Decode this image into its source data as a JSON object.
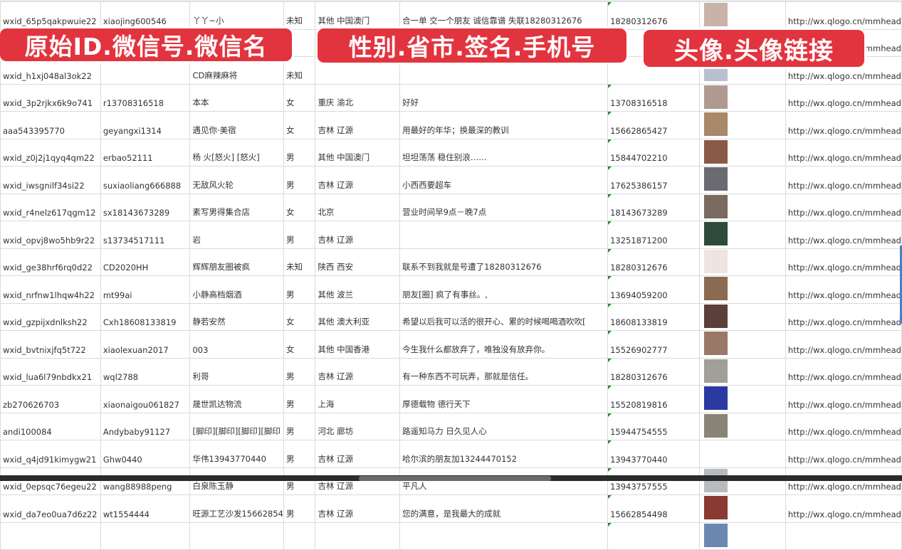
{
  "overlay_labels": [
    "原始ID.微信号.微信名",
    "性别.省市.签名.手机号",
    "头像.头像链接"
  ],
  "rows": [
    {
      "id": "wxid_65p5qakpwuie22",
      "wechat": "xiaojing600546",
      "name": "丫丫~小",
      "gender": "未知",
      "region": "其他 中国澳门",
      "signature": "合一单 交一个朋友 诚信靠谱 失联18280312676",
      "phone": "18280312676",
      "avatar": "#c9b3a8",
      "url": "http://wx.qlogo.cn/mmhead"
    },
    {
      "id": "",
      "wechat": "",
      "name": "",
      "gender": "",
      "region": "",
      "signature": "",
      "phone": "",
      "avatar": "#8aa0c0",
      "url": "http://wx.qlogo.cn/mmhead"
    },
    {
      "id": "wxid_h1xj048al3ok22",
      "wechat": "",
      "name": "CD麻辣麻将",
      "gender": "未知",
      "region": "",
      "signature": "",
      "phone": "",
      "avatar": "#b8c0d0",
      "url": "http://wx.qlogo.cn/mmhead"
    },
    {
      "id": "wxid_3p2rjkx6k9o741",
      "wechat": "r13708316518",
      "name": "本本",
      "gender": "女",
      "region": "重庆 渝北",
      "signature": "好好",
      "phone": "13708316518",
      "avatar": "#b09a90",
      "url": "http://wx.qlogo.cn/mmhead"
    },
    {
      "id": "aaa543395770",
      "wechat": "geyangxi1314",
      "name": "遇见你·美宿",
      "gender": "女",
      "region": "吉林 辽源",
      "signature": "用最好的年华；换最深的教训",
      "phone": "15662865427",
      "avatar": "#a88868",
      "url": "http://wx.qlogo.cn/mmhead"
    },
    {
      "id": "wxid_z0j2j1qyq4qm22",
      "wechat": "erbao52111",
      "name": "杨 火[怒火] [怒火]",
      "gender": "男",
      "region": "其他 中国澳门",
      "signature": "坦坦荡荡 稳住别浪……",
      "phone": "15844702210",
      "avatar": "#8a5a48",
      "url": "http://wx.qlogo.cn/mmhead"
    },
    {
      "id": "wxid_iwsgnilf34si22",
      "wechat": "suxiaoliang666888",
      "name": "无敌风火轮",
      "gender": "男",
      "region": "吉林 辽源",
      "signature": "小西西要超车",
      "phone": "17625386157",
      "avatar": "#6a6a70",
      "url": "http://wx.qlogo.cn/mmhead"
    },
    {
      "id": "wxid_r4nelz617qgm12",
      "wechat": "sx18143673289",
      "name": "素写男得集合店",
      "gender": "女",
      "region": "北京",
      "signature": "营业时间早9点－晚7点",
      "phone": "18143673289",
      "avatar": "#7a6a60",
      "url": "http://wx.qlogo.cn/mmhead"
    },
    {
      "id": "wxid_opvj8wo5hb9r22",
      "wechat": "s13734517111",
      "name": "岩",
      "gender": "男",
      "region": "吉林 辽源",
      "signature": "",
      "phone": "13251871200",
      "avatar": "#2e4a38",
      "url": "http://wx.qlogo.cn/mmhead"
    },
    {
      "id": "wxid_ge38hrf6rq0d22",
      "wechat": "CD2020HH",
      "name": "辉辉朋友圈被疯",
      "gender": "未知",
      "region": "陕西 西安",
      "signature": "联系不到我就是号遭了18280312676",
      "phone": "18280312676",
      "avatar": "#f0e4e0",
      "url": "http://wx.qlogo.cn/mmhead"
    },
    {
      "id": "wxid_nrfnw1lhqw4h22",
      "wechat": "mt99ai",
      "name": "小静高档烟酒",
      "gender": "男",
      "region": "其他 波兰",
      "signature": "朋友[圈] 疯了有事丝。,",
      "phone": "13694059200",
      "avatar": "#8a6a50",
      "url": "http://wx.qlogo.cn/mmhead"
    },
    {
      "id": "wxid_gzpijxdnlksh22",
      "wechat": "Cxh18608133819",
      "name": "静若安然",
      "gender": "女",
      "region": "其他 澳大利亚",
      "signature": "希望以后我可以活的很开心、累的时候喝喝酒吹吹[",
      "phone": "18608133819",
      "avatar": "#5a4038",
      "url": "http://wx.qlogo.cn/mmhead"
    },
    {
      "id": "wxid_bvtnixjfq5t722",
      "wechat": "xiaolexuan2017",
      "name": "003",
      "gender": "女",
      "region": "其他 中国香港",
      "signature": "今生我什么都放弃了，唯独没有放弃你。",
      "phone": "15526902777",
      "avatar": "#9a7868",
      "url": "http://wx.qlogo.cn/mmhead"
    },
    {
      "id": "wxid_lua6l79nbdkx21",
      "wechat": "wql2788",
      "name": "利哥",
      "gender": "男",
      "region": "吉林 辽源",
      "signature": "有一种东西不可玩弄，那就是信任。",
      "phone": "18280312676",
      "avatar": "#a0a098",
      "url": "http://wx.qlogo.cn/mmhead"
    },
    {
      "id": "zb270626703",
      "wechat": "xiaonaigou061827",
      "name": "晟世凯达物流",
      "gender": "男",
      "region": "上海",
      "signature": "厚德载物 德行天下",
      "phone": "15520819816",
      "avatar": "#2a3aa0",
      "url": "http://wx.qlogo.cn/mmhead"
    },
    {
      "id": "andi100084",
      "wechat": "Andybaby91127",
      "name": "[脚印][脚印][脚印][脚印",
      "gender": "男",
      "region": "河北 廊坊",
      "signature": "路遥知马力 日久见人心",
      "phone": "15944754555",
      "avatar": "#8a8478",
      "url": "http://wx.qlogo.cn/mmhead"
    },
    {
      "id": "wxid_q4jd91kimygw21",
      "wechat": "Ghw0440",
      "name": "华伟13943770440",
      "gender": "男",
      "region": "吉林 辽源",
      "signature": "哈尔滨的朋友加13244470152",
      "phone": "13943770440",
      "avatar": "#ffffff",
      "url": "http://wx.qlogo.cn/mmhead"
    },
    {
      "id": "wxid_0epsqc76egeu22",
      "wechat": "wang88988peng",
      "name": "白泉陈玉静",
      "gender": "男",
      "region": "吉林 辽源",
      "signature": "平凡人",
      "phone": "13943757555",
      "avatar": "#b8bcc0",
      "url": "http://wx.qlogo.cn/mmhead"
    },
    {
      "id": "wxid_da7eo0ua7d6z22",
      "wechat": "wt1554444",
      "name": "旺源工艺沙发15662854",
      "gender": "男",
      "region": "吉林 辽源",
      "signature": "您的满意，是我最大的成就",
      "phone": "15662854498",
      "avatar": "#8a3a30",
      "url": "http://wx.qlogo.cn/mmhead"
    },
    {
      "id": "",
      "wechat": "",
      "name": "",
      "gender": "",
      "region": "",
      "signature": "",
      "phone": "",
      "avatar": "#6a88b0",
      "url": ""
    }
  ]
}
